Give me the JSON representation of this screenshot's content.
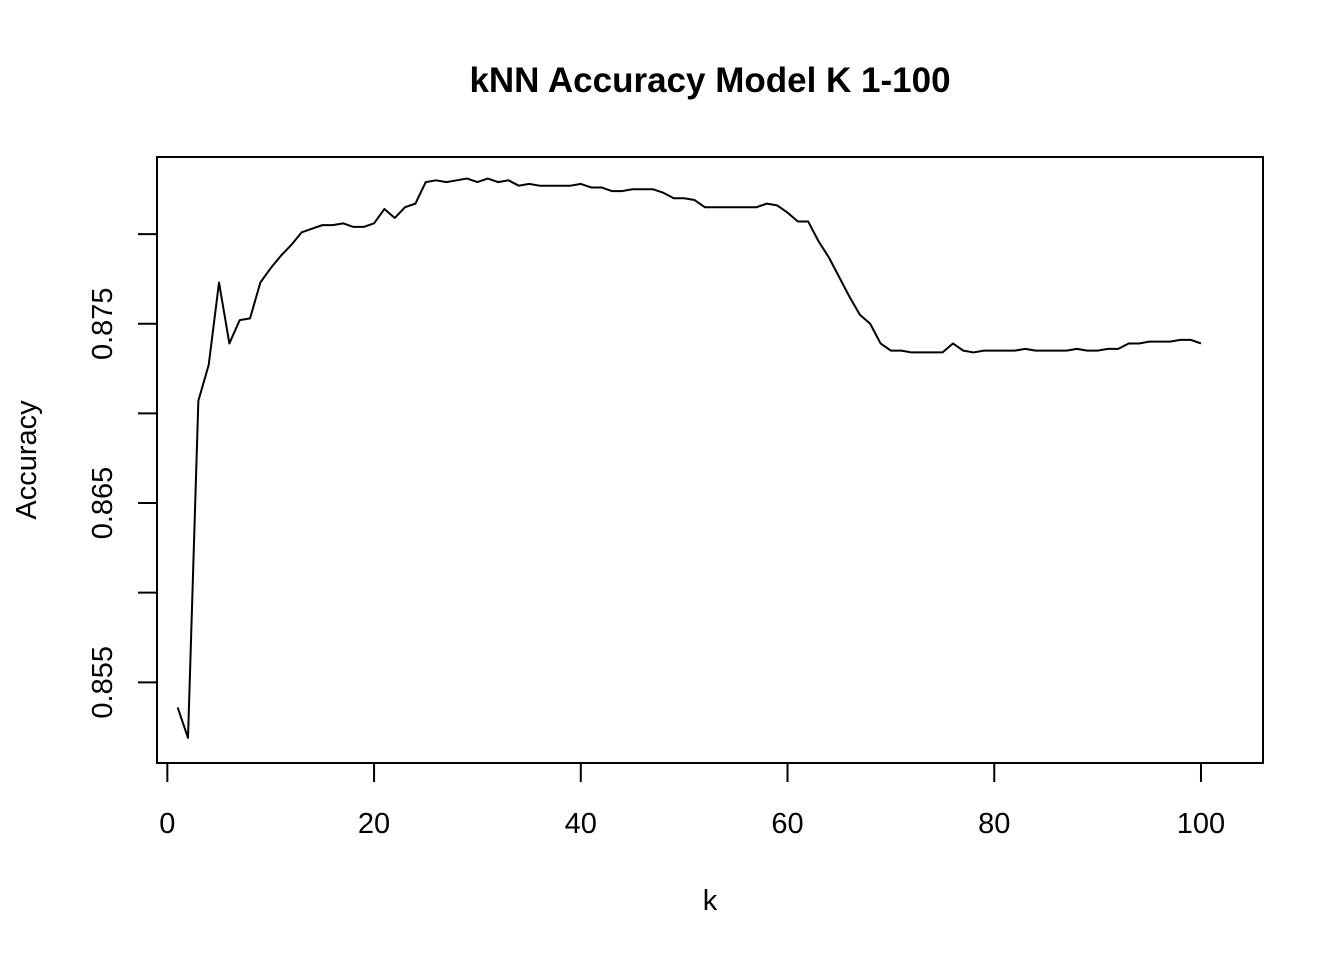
{
  "chart_data": {
    "type": "line",
    "title": "kNN Accuracy Model K 1-100",
    "xlabel": "k",
    "ylabel": "Accuracy",
    "xlim": [
      -1,
      106
    ],
    "ylim": [
      0.8505,
      0.8843
    ],
    "xticks": [
      0,
      20,
      40,
      60,
      80,
      100
    ],
    "xtick_labels": [
      "0",
      "20",
      "40",
      "60",
      "80",
      "100"
    ],
    "yticks": [
      0.855,
      0.86,
      0.865,
      0.87,
      0.875,
      0.88
    ],
    "ytick_labels": [
      "0.855",
      "",
      "0.865",
      "",
      "0.875",
      ""
    ],
    "grid": false,
    "legend": "none",
    "line_color": "#000000",
    "series": [
      {
        "x": [
          1,
          2,
          3,
          4,
          5,
          6,
          7,
          8,
          9,
          10,
          11,
          12,
          13,
          14,
          15,
          16,
          17,
          18,
          19,
          20,
          21,
          22,
          23,
          24,
          25,
          26,
          27,
          28,
          29,
          30,
          31,
          32,
          33,
          34,
          35,
          36,
          37,
          38,
          39,
          40,
          41,
          42,
          43,
          44,
          45,
          46,
          47,
          48,
          49,
          50,
          51,
          52,
          53,
          54,
          55,
          56,
          57,
          58,
          59,
          60,
          61,
          62,
          63,
          64,
          65,
          66,
          67,
          68,
          69,
          70,
          71,
          72,
          73,
          74,
          75,
          76,
          77,
          78,
          79,
          80,
          81,
          82,
          83,
          84,
          85,
          86,
          87,
          88,
          89,
          90,
          91,
          92,
          93,
          94,
          95,
          96,
          97,
          98,
          99,
          100
        ],
        "values": [
          0.8536,
          0.8519,
          0.8707,
          0.8727,
          0.8773,
          0.8739,
          0.8752,
          0.8753,
          0.8773,
          0.8781,
          0.8788,
          0.8794,
          0.8801,
          0.8803,
          0.8805,
          0.8805,
          0.8806,
          0.8804,
          0.8804,
          0.8806,
          0.8814,
          0.8809,
          0.8815,
          0.8817,
          0.8829,
          0.883,
          0.8829,
          0.883,
          0.8831,
          0.8829,
          0.8831,
          0.8829,
          0.883,
          0.8827,
          0.8828,
          0.8827,
          0.8827,
          0.8827,
          0.8827,
          0.8828,
          0.8826,
          0.8826,
          0.8824,
          0.8824,
          0.8825,
          0.8825,
          0.8825,
          0.8823,
          0.882,
          0.882,
          0.8819,
          0.8815,
          0.8815,
          0.8815,
          0.8815,
          0.8815,
          0.8815,
          0.8817,
          0.8816,
          0.8812,
          0.8807,
          0.8807,
          0.8796,
          0.8787,
          0.8776,
          0.8765,
          0.8755,
          0.875,
          0.8739,
          0.8735,
          0.8735,
          0.8734,
          0.8734,
          0.8734,
          0.8734,
          0.8739,
          0.8735,
          0.8734,
          0.8735,
          0.8735,
          0.8735,
          0.8735,
          0.8736,
          0.8735,
          0.8735,
          0.8735,
          0.8735,
          0.8736,
          0.8735,
          0.8735,
          0.8736,
          0.8736,
          0.8739,
          0.8739,
          0.874,
          0.874,
          0.874,
          0.8741,
          0.8741,
          0.8739
        ]
      }
    ]
  }
}
